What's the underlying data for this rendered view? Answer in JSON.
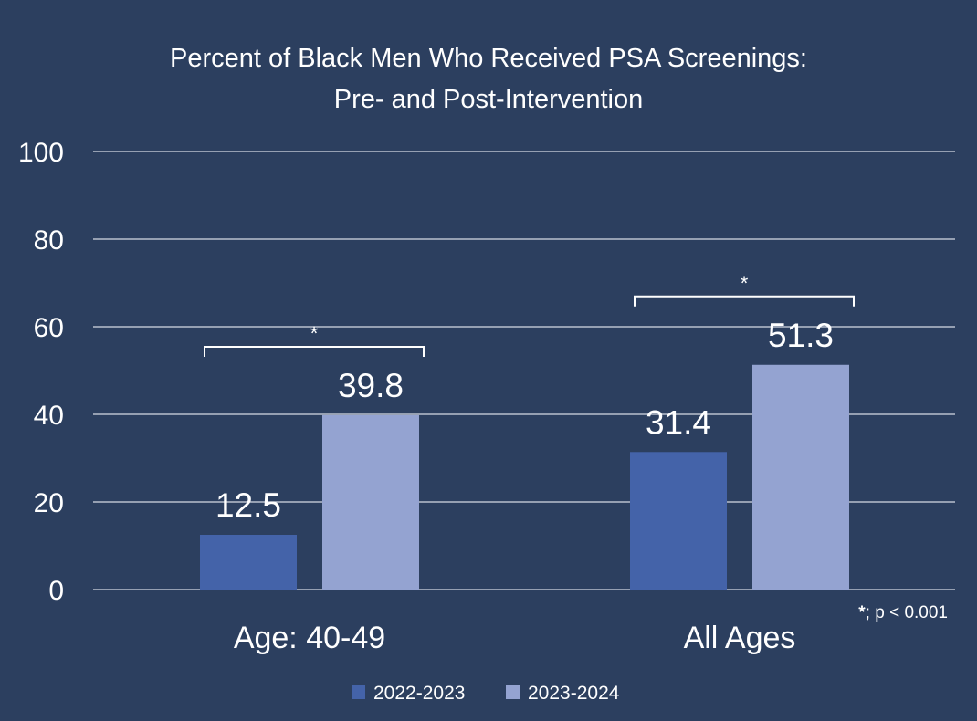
{
  "chart_data": {
    "type": "bar",
    "title": "Percent of Black Men Who Received PSA Screenings:",
    "subtitle": "Pre- and Post-Intervention",
    "xlabel": "",
    "ylabel": "",
    "categories": [
      "Age: 40-49",
      "All Ages"
    ],
    "series": [
      {
        "name": "2022-2023",
        "values": [
          12.5,
          31.4
        ],
        "color": "#4463a9"
      },
      {
        "name": "2023-2024",
        "values": [
          39.8,
          51.3
        ],
        "color": "#94a3d1"
      }
    ],
    "data_labels": [
      [
        "12.5",
        "31.4"
      ],
      [
        "39.8",
        "51.3"
      ]
    ],
    "ylim": [
      0,
      100
    ],
    "yticks": [
      0,
      20,
      40,
      60,
      80,
      100
    ],
    "grid": true,
    "legend_position": "bottom",
    "significance_marker": "*",
    "significance_note_star": "*",
    "significance_note_text": "; p < 0.001"
  },
  "colors": {
    "background": "#2c3f5f",
    "gridline": "#d6dbe3",
    "text": "#ffffff"
  }
}
